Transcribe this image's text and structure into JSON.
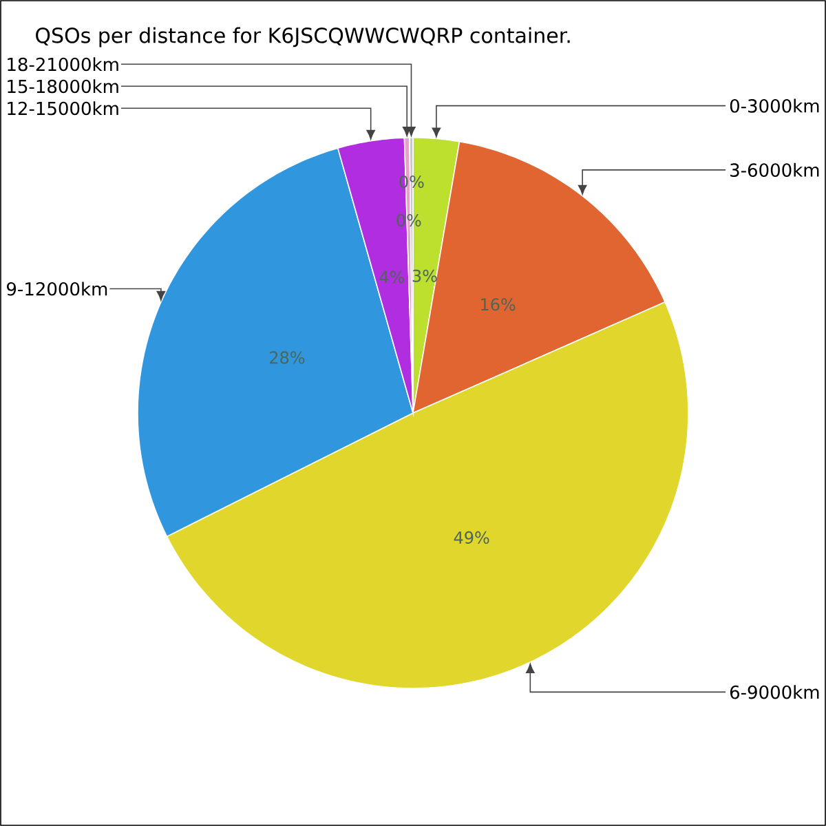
{
  "chart_data": {
    "type": "pie",
    "title": "QSOs per distance for K6JSCQWWCWQRP container.",
    "categories": [
      "0-3000km",
      "3-6000km",
      "6-9000km",
      "9-12000km",
      "12-15000km",
      "15-18000km",
      "18-21000km"
    ],
    "values": [
      2.7,
      15.7,
      49.2,
      28.0,
      3.9,
      0.3,
      0.2
    ],
    "colors": [
      "#bde02f",
      "#e06530",
      "#e0d62c",
      "#3097df",
      "#b02de0",
      "#e8a0c8",
      "#c8c8c8"
    ],
    "value_labels": [
      "3%",
      "16%",
      "49%",
      "28%",
      "4%",
      "0%",
      "0%"
    ]
  }
}
